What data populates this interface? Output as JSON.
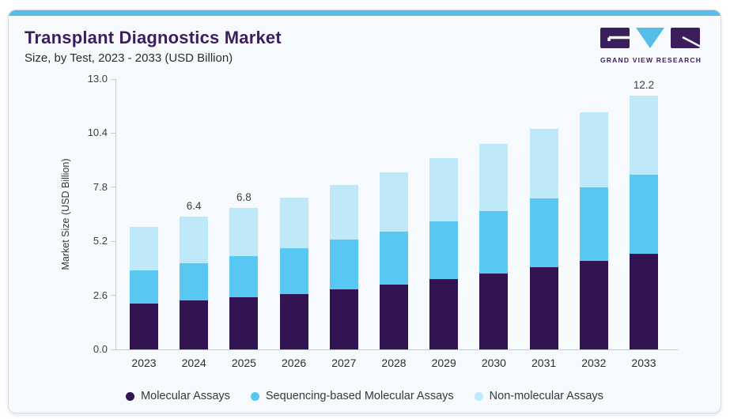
{
  "header": {
    "title": "Transplant Diagnostics Market",
    "subtitle": "Size, by Test, 2023 - 2033 (USD Billion)"
  },
  "logo": {
    "text": "GRAND VIEW RESEARCH",
    "block_color": "#3b1e5c",
    "triangle_color": "#56bce8"
  },
  "colors": {
    "accent_bar": "#56bce8",
    "title_purple": "#3b1e5c",
    "card_background": "#f6fafc",
    "axis_line": "#c6ccd4"
  },
  "chart_data": {
    "type": "bar",
    "stacked": true,
    "title": "Transplant Diagnostics Market",
    "subtitle": "Size, by Test, 2023 - 2033 (USD Billion)",
    "xlabel": "",
    "ylabel": "Market Size (USD Billion)",
    "ylim": [
      0,
      13.0
    ],
    "yticks": [
      "0.0",
      "2.6",
      "5.2",
      "7.8",
      "10.4",
      "13.0"
    ],
    "grid": false,
    "legend_position": "bottom",
    "categories": [
      "2023",
      "2024",
      "2025",
      "2026",
      "2027",
      "2028",
      "2029",
      "2030",
      "2031",
      "2032",
      "2033"
    ],
    "series": [
      {
        "name": "Molecular Assays",
        "color": "#331453",
        "values": [
          2.2,
          2.35,
          2.5,
          2.65,
          2.9,
          3.1,
          3.4,
          3.65,
          3.95,
          4.25,
          4.6
        ]
      },
      {
        "name": "Sequencing-based Molecular Assays",
        "color": "#58c8f3",
        "values": [
          1.6,
          1.8,
          2.0,
          2.2,
          2.4,
          2.55,
          2.75,
          3.0,
          3.3,
          3.55,
          3.8
        ]
      },
      {
        "name": "Non-molecular Assays",
        "color": "#bfe9f9",
        "values": [
          2.1,
          2.25,
          2.3,
          2.45,
          2.6,
          2.85,
          3.05,
          3.25,
          3.35,
          3.6,
          3.8
        ]
      }
    ],
    "totals": [
      5.9,
      6.4,
      6.8,
      7.3,
      7.9,
      8.5,
      9.2,
      9.9,
      10.6,
      11.4,
      12.2
    ],
    "bar_total_labels": [
      "",
      "6.4",
      "6.8",
      "",
      "",
      "",
      "",
      "",
      "",
      "",
      "12.2"
    ]
  }
}
